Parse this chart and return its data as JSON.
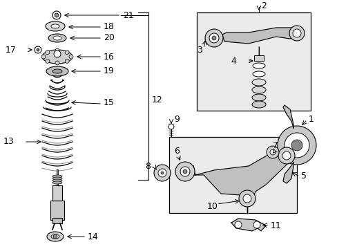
{
  "bg_color": "#ffffff",
  "fig_width": 4.89,
  "fig_height": 3.6,
  "dpi": 100,
  "font_size": 9,
  "font_size_small": 8
}
